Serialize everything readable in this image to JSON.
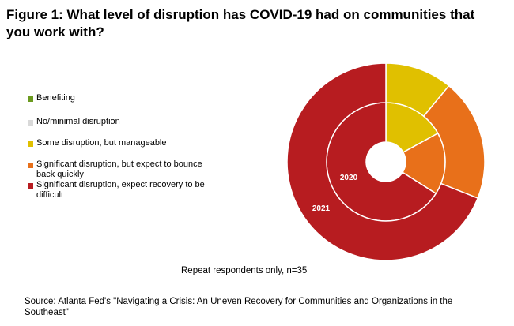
{
  "title": "Figure 1: What level of disruption has COVID-19 had on communities that you work with?",
  "note": "Repeat respondents only, n=35",
  "source": "Source: Atlanta Fed's \"Navigating a Crisis: An Uneven Recovery for Communities and Organizations in the Southeast\"",
  "chart_data": {
    "type": "donut",
    "title": "Figure 1: What level of disruption has COVID-19 had on communities that you work with?",
    "categories": [
      "Benefiting",
      "No/minimal disruption",
      "Some disruption, but manageable",
      "Significant disruption, but expect to bounce back quickly",
      "Significant disruption, expect recovery to be difficult"
    ],
    "colors": [
      "#6b9a1f",
      "#d9d9d9",
      "#e0c000",
      "#e8701a",
      "#b71c20"
    ],
    "series": [
      {
        "name": "2020",
        "ring": "inner",
        "values": [
          0,
          0,
          17,
          17,
          66
        ]
      },
      {
        "name": "2021",
        "ring": "outer",
        "values": [
          0,
          0,
          11,
          20,
          69
        ]
      }
    ],
    "legend_position": "left"
  }
}
